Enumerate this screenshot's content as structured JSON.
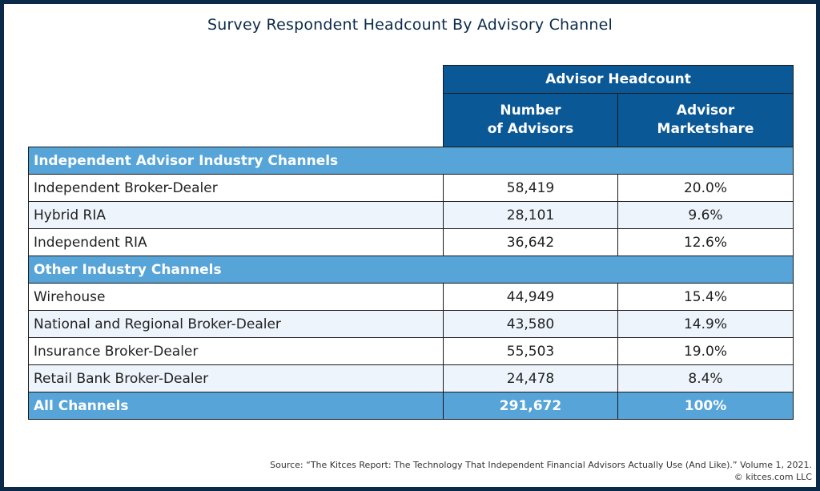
{
  "title": "Survey Respondent Headcount By Advisory Channel",
  "chart_data": {
    "type": "table",
    "title": "Survey Respondent Headcount By Advisory Channel",
    "group_header": "Advisor Headcount",
    "columns": [
      "Number of Advisors",
      "Advisor Marketshare"
    ],
    "sections": [
      {
        "label": "Independent Advisor Industry Channels",
        "rows": [
          {
            "channel": "Independent Broker-Dealer",
            "advisors": "58,419",
            "share": "20.0%"
          },
          {
            "channel": "Hybrid RIA",
            "advisors": "28,101",
            "share": "9.6%"
          },
          {
            "channel": "Independent RIA",
            "advisors": "36,642",
            "share": "12.6%"
          }
        ]
      },
      {
        "label": "Other Industry Channels",
        "rows": [
          {
            "channel": "Wirehouse",
            "advisors": "44,949",
            "share": "15.4%"
          },
          {
            "channel": "National and Regional Broker-Dealer",
            "advisors": "43,580",
            "share": "14.9%"
          },
          {
            "channel": "Insurance Broker-Dealer",
            "advisors": "55,503",
            "share": "19.0%"
          },
          {
            "channel": "Retail Bank Broker-Dealer",
            "advisors": "24,478",
            "share": "8.4%"
          }
        ]
      }
    ],
    "total": {
      "channel": "All Channels",
      "advisors": "291,672",
      "share": "100%"
    }
  },
  "header_lines": {
    "col1_line1": "Number",
    "col1_line2": "of Advisors",
    "col2_line1": "Advisor",
    "col2_line2": "Marketshare"
  },
  "source": "Source: “The Kitces Report: The Technology That Independent Financial Advisors Actually Use (And Like).” Volume 1, 2021.",
  "copyright": "© kitces.com LLC",
  "colors": {
    "frame": "#0b2a4a",
    "header": "#0a5896",
    "section": "#56a4d8",
    "alt_row": "#edf4fb"
  }
}
